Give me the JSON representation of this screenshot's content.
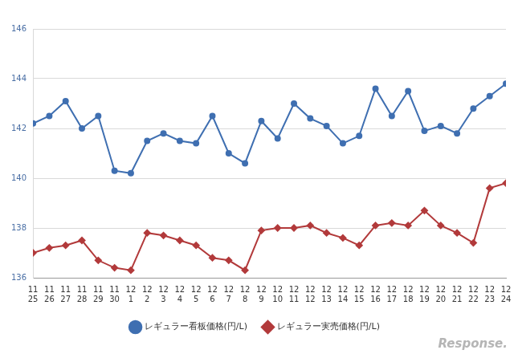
{
  "chart_data": {
    "type": "line",
    "categories": [
      [
        "11",
        "25"
      ],
      [
        "11",
        "26"
      ],
      [
        "11",
        "27"
      ],
      [
        "11",
        "28"
      ],
      [
        "11",
        "29"
      ],
      [
        "11",
        "30"
      ],
      [
        "12",
        "1"
      ],
      [
        "12",
        "2"
      ],
      [
        "12",
        "3"
      ],
      [
        "12",
        "4"
      ],
      [
        "12",
        "5"
      ],
      [
        "12",
        "6"
      ],
      [
        "12",
        "7"
      ],
      [
        "12",
        "8"
      ],
      [
        "12",
        "9"
      ],
      [
        "12",
        "10"
      ],
      [
        "12",
        "11"
      ],
      [
        "12",
        "12"
      ],
      [
        "12",
        "13"
      ],
      [
        "12",
        "14"
      ],
      [
        "12",
        "15"
      ],
      [
        "12",
        "16"
      ],
      [
        "12",
        "17"
      ],
      [
        "12",
        "18"
      ],
      [
        "12",
        "19"
      ],
      [
        "12",
        "20"
      ],
      [
        "12",
        "21"
      ],
      [
        "12",
        "22"
      ],
      [
        "12",
        "23"
      ],
      [
        "12",
        "24"
      ]
    ],
    "series": [
      {
        "name": "レギュラー看板価格(円/L)",
        "color": "#3f6fb1",
        "marker": "circle",
        "values": [
          142.2,
          142.5,
          143.1,
          142.0,
          142.5,
          140.3,
          140.2,
          141.5,
          141.8,
          141.5,
          141.4,
          142.5,
          141.0,
          140.6,
          142.3,
          141.6,
          143.0,
          142.4,
          142.1,
          141.4,
          141.7,
          143.6,
          142.5,
          143.5,
          141.9,
          142.1,
          141.8,
          142.8,
          143.3,
          143.8
        ]
      },
      {
        "name": "レギュラー実売価格(円/L)",
        "color": "#b23a3b",
        "marker": "diamond",
        "values": [
          137.0,
          137.2,
          137.3,
          137.5,
          136.7,
          136.4,
          136.3,
          137.8,
          137.7,
          137.5,
          137.3,
          136.8,
          136.7,
          136.3,
          137.9,
          138.0,
          138.0,
          138.1,
          137.8,
          137.6,
          137.3,
          138.1,
          138.2,
          138.1,
          138.7,
          138.1,
          137.8,
          137.4,
          139.6,
          139.8
        ]
      }
    ],
    "ylim": [
      136,
      146
    ],
    "yticks": [
      136,
      138,
      140,
      142,
      144,
      146
    ],
    "grid": true,
    "legend": "bottom",
    "watermark": "Response."
  }
}
